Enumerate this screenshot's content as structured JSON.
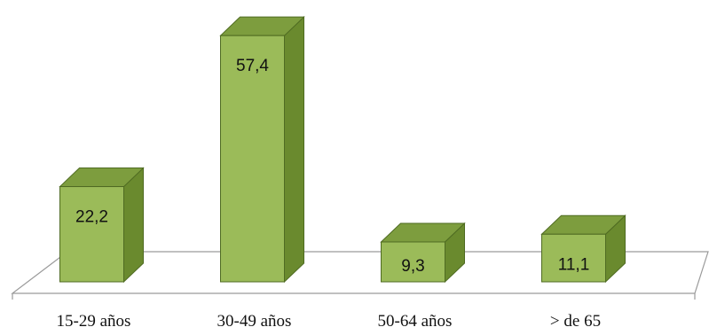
{
  "chart_data": {
    "type": "bar",
    "style": "3d-column",
    "categories": [
      "15-29 años",
      "30-49 años",
      "50-64 años",
      "> de 65"
    ],
    "values": [
      22.2,
      57.4,
      9.3,
      11.1
    ],
    "value_labels": [
      "22,2",
      "57,4",
      "9,3",
      "11,1"
    ],
    "ylim": [
      0,
      60
    ],
    "grid": false,
    "legend": "none",
    "colors": {
      "bar_front": "#9bbb59",
      "bar_side": "#6a8a2e",
      "bar_top": "#7d9d3e",
      "bar_edge": "#4f6b22",
      "floor_stroke": "#9a9a9a"
    }
  }
}
